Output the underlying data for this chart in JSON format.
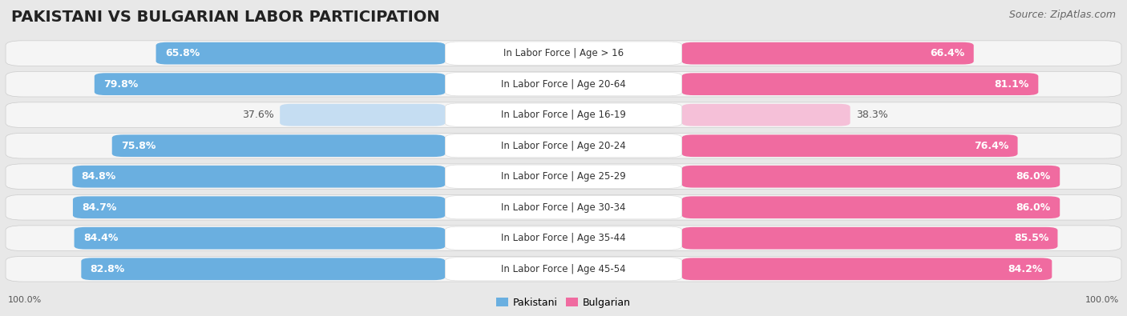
{
  "title": "PAKISTANI VS BULGARIAN LABOR PARTICIPATION",
  "source": "Source: ZipAtlas.com",
  "categories": [
    "In Labor Force | Age > 16",
    "In Labor Force | Age 20-64",
    "In Labor Force | Age 16-19",
    "In Labor Force | Age 20-24",
    "In Labor Force | Age 25-29",
    "In Labor Force | Age 30-34",
    "In Labor Force | Age 35-44",
    "In Labor Force | Age 45-54"
  ],
  "pakistani_values": [
    65.8,
    79.8,
    37.6,
    75.8,
    84.8,
    84.7,
    84.4,
    82.8
  ],
  "bulgarian_values": [
    66.4,
    81.1,
    38.3,
    76.4,
    86.0,
    86.0,
    85.5,
    84.2
  ],
  "pakistani_color_dark": "#6aafe0",
  "pakistani_color_light": "#c5ddf2",
  "bulgarian_color_dark": "#f06ba0",
  "bulgarian_color_light": "#f5c0d8",
  "bg_color": "#e8e8e8",
  "row_bg": "#f5f5f5",
  "legend_pakistani": "Pakistani",
  "legend_bulgarian": "Bulgarian",
  "title_fontsize": 14,
  "source_fontsize": 9,
  "bar_label_fontsize": 9,
  "category_fontsize": 8.5,
  "center_label_bg": "#ffffff"
}
